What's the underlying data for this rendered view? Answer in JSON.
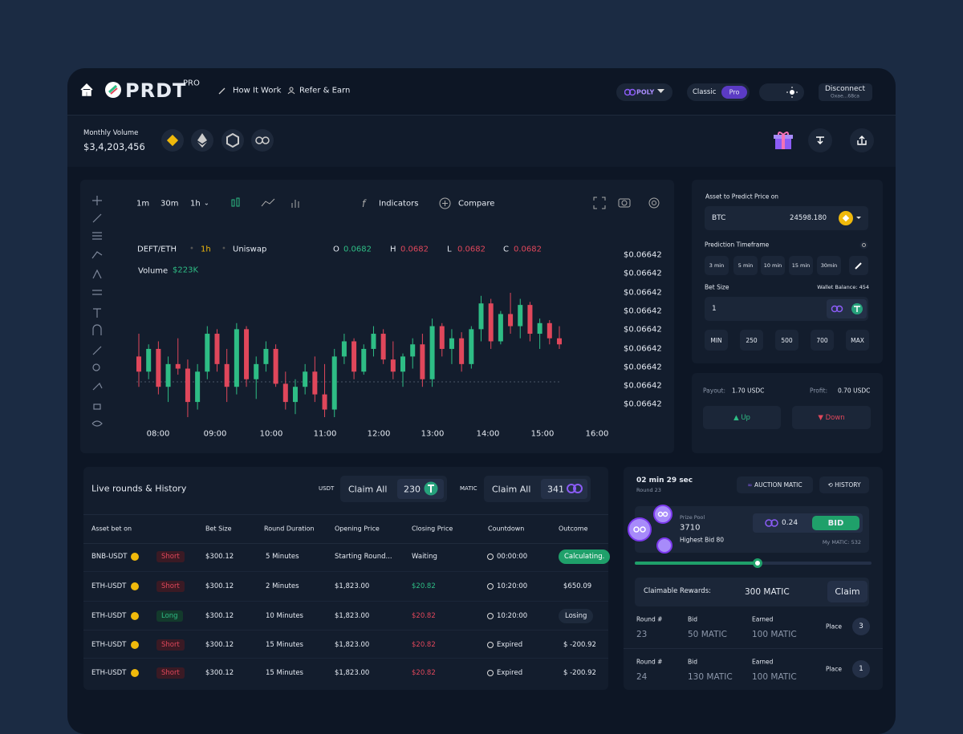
{
  "nav": {
    "brand": "PRDT",
    "brand_sup": "PRO",
    "links": [
      "How It Work",
      "Refer & Earn"
    ],
    "network": "POLY",
    "modes": [
      "Classic",
      "Pro"
    ],
    "wallet": {
      "label": "Disconnect",
      "address": "Oxae...68ca"
    }
  },
  "volume": {
    "label": "Monthly Volume",
    "value": "$3,4,203,456"
  },
  "chart": {
    "timeframes": [
      "1m",
      "30m",
      "1h"
    ],
    "indicators": "Indicators",
    "compare": "Compare",
    "pair": "DEFT/ETH",
    "interval": "1h",
    "exchange": "Uniswap",
    "ohlc": [
      {
        "label": "O",
        "value": "0.0682"
      },
      {
        "label": "H",
        "value": "0.0682"
      },
      {
        "label": "L",
        "value": "0.0682"
      },
      {
        "label": "C",
        "value": "0.0682"
      }
    ],
    "volume_label": "Volume",
    "volume_value": "$223K",
    "price_labels": [
      "$0.06642",
      "$0.06642",
      "$0.06642",
      "$0.06642",
      "$0.06642",
      "$0.06642",
      "$0.06642",
      "$0.06642",
      "$0.06642"
    ],
    "time_labels": [
      "08:00",
      "09:00",
      "10:00",
      "11:00",
      "12:00",
      "13:00",
      "14:00",
      "15:00",
      "16:00"
    ],
    "candles": [
      [
        50,
        65,
        30,
        40
      ],
      [
        40,
        58,
        35,
        55
      ],
      [
        55,
        60,
        25,
        30
      ],
      [
        30,
        50,
        20,
        45
      ],
      [
        45,
        62,
        38,
        42
      ],
      [
        42,
        48,
        10,
        20
      ],
      [
        20,
        45,
        15,
        40
      ],
      [
        40,
        70,
        35,
        65
      ],
      [
        65,
        68,
        40,
        45
      ],
      [
        45,
        55,
        20,
        30
      ],
      [
        30,
        72,
        25,
        68
      ],
      [
        68,
        70,
        30,
        35
      ],
      [
        35,
        50,
        22,
        45
      ],
      [
        45,
        60,
        40,
        55
      ],
      [
        55,
        58,
        30,
        32
      ],
      [
        32,
        40,
        15,
        20
      ],
      [
        20,
        35,
        12,
        30
      ],
      [
        30,
        45,
        25,
        40
      ],
      [
        40,
        50,
        20,
        25
      ],
      [
        25,
        45,
        10,
        15
      ],
      [
        15,
        55,
        10,
        50
      ],
      [
        50,
        65,
        45,
        60
      ],
      [
        60,
        62,
        35,
        40
      ],
      [
        40,
        58,
        38,
        55
      ],
      [
        55,
        70,
        50,
        65
      ],
      [
        65,
        68,
        45,
        48
      ],
      [
        48,
        60,
        35,
        40
      ],
      [
        40,
        52,
        30,
        50
      ],
      [
        50,
        62,
        42,
        58
      ],
      [
        58,
        65,
        30,
        35
      ],
      [
        35,
        75,
        30,
        70
      ],
      [
        70,
        72,
        50,
        55
      ],
      [
        55,
        68,
        45,
        62
      ],
      [
        62,
        66,
        40,
        45
      ],
      [
        45,
        70,
        42,
        68
      ],
      [
        68,
        90,
        60,
        85
      ],
      [
        85,
        88,
        55,
        60
      ],
      [
        60,
        80,
        58,
        78
      ],
      [
        78,
        92,
        65,
        70
      ],
      [
        70,
        88,
        62,
        84
      ],
      [
        84,
        86,
        60,
        65
      ],
      [
        65,
        75,
        55,
        72
      ],
      [
        72,
        74,
        58,
        62
      ],
      [
        62,
        70,
        55,
        58
      ]
    ]
  },
  "predict": {
    "asset_label": "Asset to Predict Price on",
    "asset": "BTC",
    "price": "24598.180",
    "timeframe_label": "Prediction Timeframe",
    "timeframes": [
      "3 min",
      "5 min",
      "10 min",
      "15 min",
      "30min"
    ],
    "bet_label": "Bet Size",
    "wallet_balance": "Wallet Balance: 454",
    "bet_value": "1",
    "amounts": [
      "MIN",
      "250",
      "500",
      "700",
      "MAX"
    ]
  },
  "payout": {
    "payout_label": "Payout:",
    "payout": "1.70 USDC",
    "profit_label": "Profit:",
    "profit": "0.70 USDC",
    "up": "Up",
    "down": "Down"
  },
  "history": {
    "title": "Live rounds & History",
    "claims": [
      {
        "currency": "USDT",
        "button": "Claim All",
        "amount": "230"
      },
      {
        "currency": "MATIC",
        "button": "Claim All",
        "amount": "341"
      }
    ],
    "columns": [
      "Asset bet on",
      "Bet Size",
      "Round Duration",
      "Opening Price",
      "Closing Price",
      "Countdown",
      "Outcome"
    ],
    "rows": [
      [
        "BNB-USDT",
        "Short",
        "$300.12",
        "5 Minutes",
        "Starting Round...",
        "Waiting",
        "00:00:00",
        "Calculating."
      ],
      [
        "ETH-USDT",
        "Short",
        "$300.12",
        "2 Minutes",
        "$1,823.00",
        "$20.82",
        "10:20:00",
        "$650.09"
      ],
      [
        "ETH-USDT",
        "Long",
        "$300.12",
        "10 Minutes",
        "$1,823.00",
        "$20.82",
        "10:20:00",
        "Losing"
      ],
      [
        "ETH-USDT",
        "Short",
        "$300.12",
        "15 Minutes",
        "$1,823.00",
        "$20.82",
        "Expired",
        "$ -200.92"
      ],
      [
        "ETH-USDT",
        "Short",
        "$300.12",
        "15 Minutes",
        "$1,823.00",
        "$20.82",
        "Expired",
        "$ -200.92"
      ]
    ]
  },
  "auction": {
    "timer": "02 min 29 sec",
    "round": "Round 23",
    "auction_button": "AUCTION MATIC",
    "history_button": "HISTORY",
    "prize_label": "Prize Pool",
    "prize": "3710",
    "highest_bid": "Highest Bid 80",
    "bid_value": "0.24",
    "bid_button": "BID",
    "my_matic": "My MATIC: 532",
    "claimable_label": "Claimable Rewards:",
    "claimable": "300 MATIC",
    "claim_button": "Claim",
    "rounds": [
      {
        "round_label": "Round #",
        "round": "23",
        "bid_label": "Bid",
        "bid": "50 MATIC",
        "earned_label": "Earned",
        "earned": "100 MATIC",
        "place_label": "Place",
        "place": "3"
      },
      {
        "round_label": "Round #",
        "round": "24",
        "bid_label": "Bid",
        "bid": "130 MATIC",
        "earned_label": "Earned",
        "earned": "100 MATIC",
        "place_label": "Place",
        "place": "1"
      }
    ]
  }
}
